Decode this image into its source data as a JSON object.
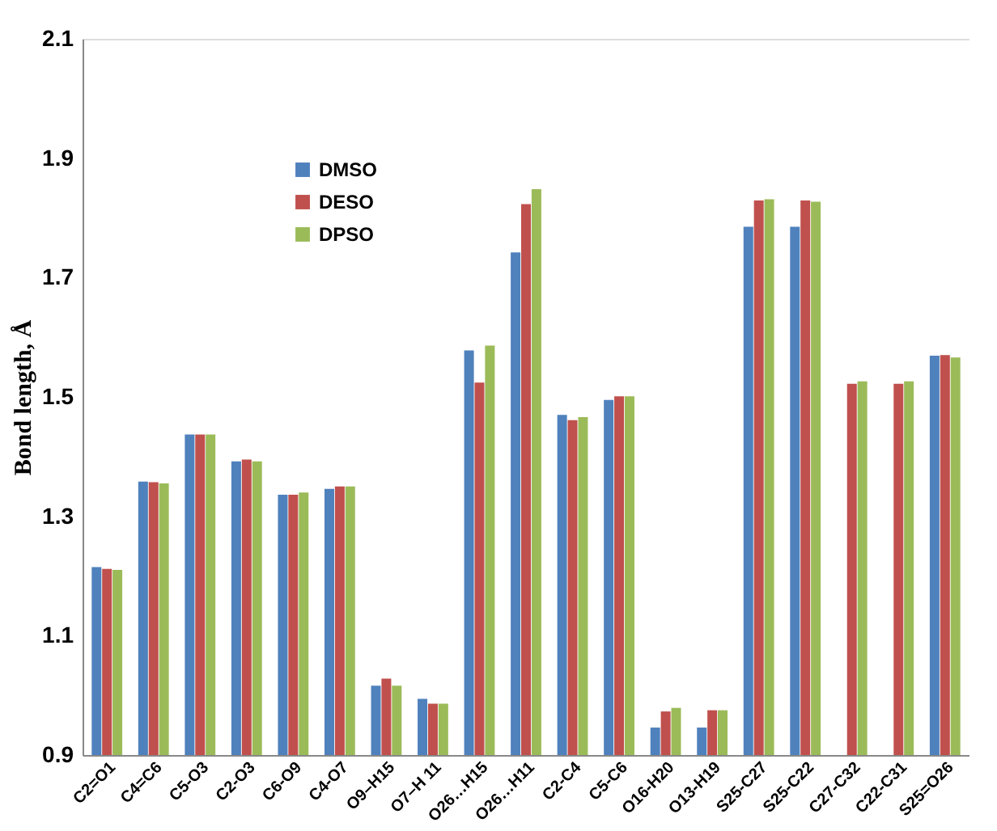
{
  "chart_data": {
    "type": "bar",
    "ylabel": "Bond length, Å",
    "categories": [
      "C2=O1",
      "C4=C6",
      "C5-O3",
      "C2-O3",
      "C6-O9",
      "C4-O7",
      "O9–H15",
      "O7–H 11",
      "O26…H15",
      "O26…H11",
      "C2-C4",
      "C5-C6",
      "O16-H20",
      "O13-H19",
      "S25-C27",
      "S25-C22",
      "C27-C32",
      "C22-C31",
      "S25=O26"
    ],
    "series": [
      {
        "name": "DMSO",
        "color": "#4f81bd",
        "values": [
          1.215,
          1.358,
          1.437,
          1.392,
          1.336,
          1.346,
          1.016,
          0.994,
          1.578,
          1.742,
          1.47,
          1.495,
          0.946,
          0.946,
          1.785,
          1.785,
          null,
          null,
          1.569
        ]
      },
      {
        "name": "DESO",
        "color": "#c0504d",
        "values": [
          1.212,
          1.357,
          1.437,
          1.395,
          1.336,
          1.35,
          1.028,
          0.986,
          1.524,
          1.823,
          1.461,
          1.501,
          0.973,
          0.975,
          1.829,
          1.829,
          1.522,
          1.522,
          1.57
        ]
      },
      {
        "name": "DPSO",
        "color": "#9bbb59",
        "values": [
          1.21,
          1.355,
          1.437,
          1.392,
          1.34,
          1.35,
          1.016,
          0.986,
          1.586,
          1.848,
          1.466,
          1.501,
          0.979,
          0.975,
          1.831,
          1.827,
          1.526,
          1.526,
          1.566
        ]
      }
    ],
    "ylim": [
      0.9,
      2.1
    ],
    "yticks": [
      0.9,
      1.1,
      1.3,
      1.5,
      1.7,
      1.9,
      2.1
    ],
    "grid": false,
    "legend": "top left"
  }
}
